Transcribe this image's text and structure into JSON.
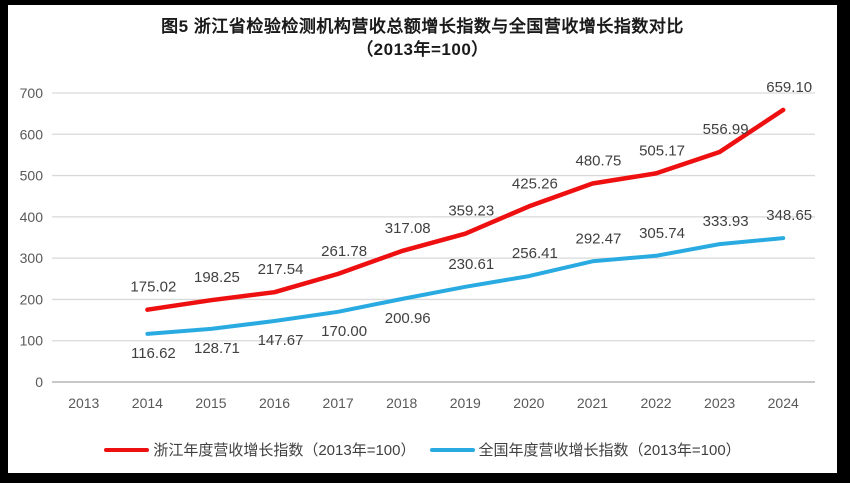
{
  "title": {
    "line1": "图5  浙江省检验检测机构营收总额增长指数与全国营收增长指数对比",
    "line2": "（2013年=100）"
  },
  "colors": {
    "zhejiang": "#ee1010",
    "national": "#29abe2",
    "gridline": "#d9d9d9",
    "axis_line": "#a6a6a6",
    "tick_text": "#595959",
    "label_text": "#404040"
  },
  "chart_data": {
    "type": "line",
    "title": "图5 浙江省检验检测机构营收总额增长指数与全国营收增长指数对比（2013年=100）",
    "categories": [
      "2013",
      "2014",
      "2015",
      "2016",
      "2017",
      "2018",
      "2019",
      "2020",
      "2021",
      "2022",
      "2023",
      "2024"
    ],
    "y_axis": {
      "min": 0,
      "max": 700,
      "step": 100
    },
    "grid": "horizontal",
    "legend_position": "bottom",
    "series": [
      {
        "name": "浙江年度营收增长指数（2013年=100）",
        "color_key": "zhejiang",
        "stroke_width": 4.5,
        "label_sides": "above",
        "values": [
          null,
          175.02,
          198.25,
          217.54,
          261.78,
          317.08,
          359.23,
          425.26,
          480.75,
          505.17,
          556.99,
          659.1
        ]
      },
      {
        "name": "全国年度营收增长指数（2013年=100）",
        "color_key": "national",
        "stroke_width": 4,
        "label_sides": [
          null,
          "below",
          "below",
          "below",
          "below",
          "below",
          "above",
          "above",
          "above",
          "above",
          "above",
          "above"
        ],
        "values": [
          null,
          116.62,
          128.71,
          147.67,
          170.0,
          200.96,
          230.61,
          256.41,
          292.47,
          305.74,
          333.93,
          348.65
        ]
      }
    ]
  }
}
